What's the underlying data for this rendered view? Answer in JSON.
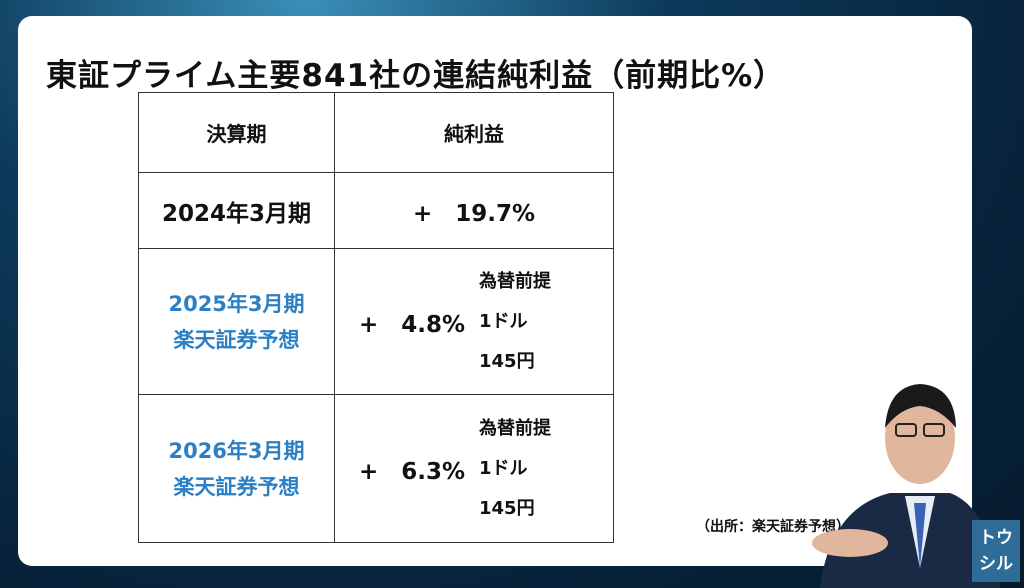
{
  "title": "東証プライム主要841社の連結純利益（前期比%）",
  "table": {
    "header": [
      "決算期",
      "純利益"
    ],
    "rows": [
      {
        "period": [
          "2024年3月期"
        ],
        "change": "+　19.7%"
      },
      {
        "period": [
          "2025年3月期",
          "楽天証券予想"
        ],
        "change": "+　4.8%",
        "note": [
          "為替前提",
          "1ドル",
          "145円"
        ]
      },
      {
        "period": [
          "2026年3月期",
          "楽天証券予想"
        ],
        "change": "+　6.3%",
        "note": [
          "為替前提",
          "1ドル",
          "145円"
        ]
      }
    ]
  },
  "source": "（出所：楽天証券予想）",
  "logo": [
    "トウ",
    "シル"
  ]
}
